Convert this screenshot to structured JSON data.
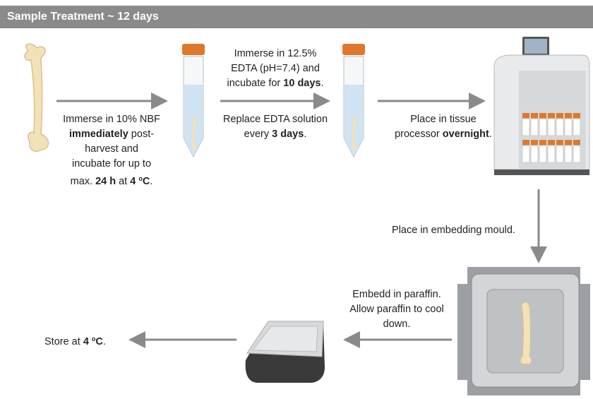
{
  "header": {
    "title": "Sample Treatment ~ 12 days"
  },
  "steps": [
    {
      "lines": [
        [
          "Immerse in 10% NBF"
        ],
        [
          "immediately",
          " post-"
        ],
        [
          "harvest and"
        ],
        [
          "incubate for up to"
        ],
        [
          "max. ",
          "24 h",
          " at ",
          "4 ",
          "o",
          "C",
          "."
        ]
      ]
    },
    {
      "lines": [
        [
          "Immerse in 12.5%"
        ],
        [
          "EDTA (pH=7.4) and"
        ],
        [
          "incubate for ",
          "10 days",
          "."
        ]
      ]
    },
    {
      "lines": [
        [
          "Replace EDTA solution"
        ],
        [
          "every ",
          "3 days",
          "."
        ]
      ]
    },
    {
      "lines": [
        [
          "Place in tissue"
        ],
        [
          "processor ",
          "overnight",
          "."
        ]
      ]
    },
    {
      "lines": [
        [
          "Place in embedding mould."
        ]
      ]
    },
    {
      "lines": [
        [
          "Embedd in paraffin."
        ],
        [
          "Allow paraffin to cool"
        ],
        [
          "down."
        ]
      ]
    },
    {
      "lines": [
        [
          "Store at ",
          "4 ",
          "o",
          "C",
          "."
        ]
      ]
    }
  ]
}
